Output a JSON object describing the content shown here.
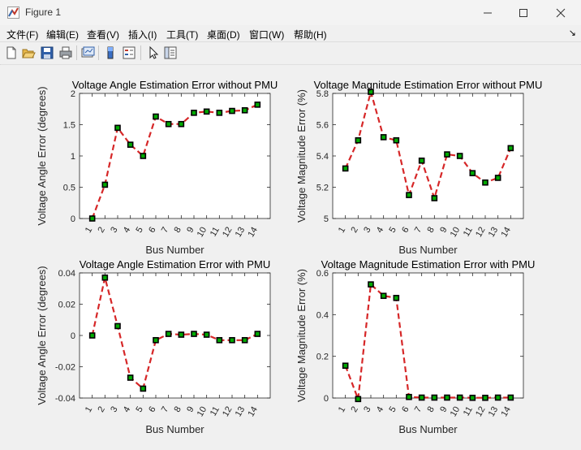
{
  "window": {
    "title": "Figure 1",
    "icon": "matlab-icon"
  },
  "window_controls": [
    "minimize-icon",
    "maximize-icon",
    "close-icon"
  ],
  "menu": [
    "文件(F)",
    "编辑(E)",
    "查看(V)",
    "插入(I)",
    "工具(T)",
    "桌面(D)",
    "窗口(W)",
    "帮助(H)"
  ],
  "menu_arrow": "↘",
  "toolbar_icons": [
    "new-figure-icon",
    "open-file-icon",
    "save-icon",
    "print-icon",
    "link-plot-icon",
    "insert-colorbar-icon",
    "insert-legend-icon",
    "pointer-icon",
    "property-inspector-icon"
  ],
  "colors": {
    "line": "#d62728",
    "marker_edge": "#000000",
    "marker_face": "#00aa00"
  },
  "chart_data": [
    {
      "type": "line",
      "title": "Voltage Angle Estimation Error without PMU",
      "xlabel": "Bus Number",
      "ylabel": "Voltage Angle Error (degrees)",
      "categories": [
        "1",
        "2",
        "3",
        "4",
        "5",
        "6",
        "7",
        "8",
        "9",
        "10",
        "11",
        "12",
        "13",
        "14"
      ],
      "values": [
        0,
        0.54,
        1.45,
        1.18,
        1.0,
        1.63,
        1.51,
        1.51,
        1.69,
        1.71,
        1.69,
        1.72,
        1.73,
        1.82
      ],
      "ylim": [
        0,
        2
      ],
      "yticks": [
        "0",
        "0.5",
        "1",
        "1.5",
        "2"
      ],
      "grid": false
    },
    {
      "type": "line",
      "title": "Voltage Magnitude Estimation Error without PMU",
      "xlabel": "Bus Number",
      "ylabel": "Voltage Magnitude Error (%)",
      "categories": [
        "1",
        "2",
        "3",
        "4",
        "5",
        "6",
        "7",
        "8",
        "9",
        "10",
        "11",
        "12",
        "13",
        "14"
      ],
      "values": [
        5.32,
        5.5,
        5.81,
        5.52,
        5.5,
        5.15,
        5.37,
        5.13,
        5.41,
        5.4,
        5.29,
        5.23,
        5.26,
        5.45
      ],
      "ylim": [
        5,
        5.8
      ],
      "yticks": [
        "5",
        "5.2",
        "5.4",
        "5.6",
        "5.8"
      ],
      "grid": false
    },
    {
      "type": "line",
      "title": "Voltage Angle Estimation Error with PMU",
      "xlabel": "Bus Number",
      "ylabel": "Voltage Angle Error (degrees)",
      "categories": [
        "1",
        "2",
        "3",
        "4",
        "5",
        "6",
        "7",
        "8",
        "9",
        "10",
        "11",
        "12",
        "13",
        "14"
      ],
      "values": [
        0,
        0.037,
        0.006,
        -0.027,
        -0.034,
        -0.003,
        0.001,
        0.0005,
        0.001,
        0.0005,
        -0.003,
        -0.003,
        -0.003,
        0.001
      ],
      "ylim": [
        -0.04,
        0.04
      ],
      "yticks": [
        "-0.04",
        "-0.02",
        "0",
        "0.02",
        "0.04"
      ],
      "grid": false
    },
    {
      "type": "line",
      "title": "Voltage Magnitude Estimation Error with PMU",
      "xlabel": "Bus Number",
      "ylabel": "Voltage Magnitude Error (%)",
      "categories": [
        "1",
        "2",
        "3",
        "4",
        "5",
        "6",
        "7",
        "8",
        "9",
        "10",
        "11",
        "12",
        "13",
        "14"
      ],
      "values": [
        0.155,
        -0.005,
        0.545,
        0.49,
        0.48,
        0.005,
        0.002,
        0.002,
        0.002,
        0.002,
        0.001,
        0.001,
        0.002,
        0.002
      ],
      "ylim": [
        0,
        0.6
      ],
      "yticks": [
        "0",
        "0.2",
        "0.4",
        "0.6"
      ],
      "grid": false
    }
  ]
}
